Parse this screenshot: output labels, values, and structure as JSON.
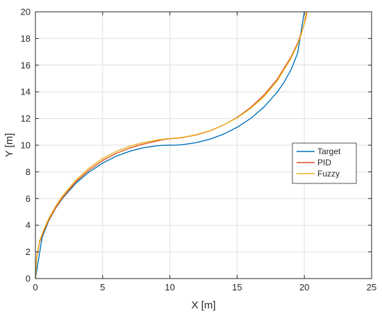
{
  "chart_data": {
    "type": "line",
    "xlabel": "X [m]",
    "ylabel": "Y [m]",
    "xlim": [
      0,
      25
    ],
    "ylim": [
      0,
      20
    ],
    "xticks": [
      0,
      5,
      10,
      15,
      20,
      25
    ],
    "yticks": [
      0,
      2,
      4,
      6,
      8,
      10,
      12,
      14,
      16,
      18,
      20
    ],
    "grid": true,
    "legend_position": "right",
    "series": [
      {
        "name": "Target",
        "color": "#0072BD",
        "x": [
          0,
          0.5,
          1,
          1.5,
          2,
          3,
          4,
          5,
          6,
          7,
          8,
          9,
          9.5,
          10,
          10.5,
          11,
          12,
          13,
          14,
          15,
          16,
          17,
          18,
          18.5,
          19,
          19.5,
          20
        ],
        "y": [
          0,
          3.1,
          4.36,
          5.27,
          6.0,
          7.14,
          8.0,
          8.66,
          9.17,
          9.54,
          9.8,
          9.95,
          9.99,
          10.0,
          10.01,
          10.05,
          10.2,
          10.46,
          10.83,
          11.34,
          12.0,
          12.86,
          14.0,
          14.73,
          15.64,
          16.9,
          20
        ]
      },
      {
        "name": "PID",
        "color": "#D95319",
        "x": [
          0,
          0.1,
          0.3,
          0.6,
          1,
          1.5,
          2,
          3,
          4,
          5,
          6,
          7,
          8,
          9,
          9.5,
          10,
          10.5,
          11,
          12,
          13,
          14,
          15,
          16,
          17,
          18,
          19,
          19.5,
          19.8,
          20.05,
          20.2
        ],
        "y": [
          0,
          1.6,
          2.7,
          3.5,
          4.4,
          5.3,
          6.05,
          7.25,
          8.15,
          8.85,
          9.38,
          9.78,
          10.08,
          10.3,
          10.42,
          10.48,
          10.52,
          10.58,
          10.78,
          11.08,
          11.52,
          12.08,
          12.82,
          13.76,
          14.96,
          16.6,
          17.65,
          18.5,
          19.3,
          20
        ]
      },
      {
        "name": "Fuzzy",
        "color": "#EDB120",
        "x": [
          0,
          0.1,
          0.3,
          0.6,
          1,
          1.5,
          2,
          3,
          4,
          5,
          6,
          7,
          8,
          9,
          9.5,
          10,
          10.5,
          11,
          12,
          13,
          14,
          15,
          16,
          17,
          18,
          19,
          19.5,
          19.8,
          20,
          20.15
        ],
        "y": [
          0,
          1.7,
          2.8,
          3.62,
          4.52,
          5.42,
          6.18,
          7.38,
          8.3,
          9.0,
          9.53,
          9.92,
          10.2,
          10.38,
          10.45,
          10.5,
          10.54,
          10.6,
          10.8,
          11.1,
          11.52,
          12.05,
          12.75,
          13.65,
          14.85,
          16.5,
          17.55,
          18.4,
          19.2,
          20
        ]
      }
    ]
  }
}
